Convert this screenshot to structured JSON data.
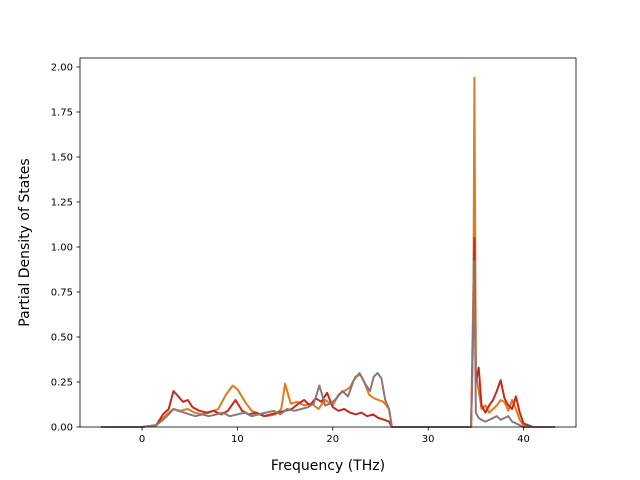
{
  "chart_data": {
    "type": "line",
    "title": "",
    "xlabel": "Frequency (THz)",
    "ylabel": "Partial Density of States",
    "xlim": [
      -6.5,
      45.5
    ],
    "ylim": [
      0.0,
      2.05
    ],
    "xticks": [
      0,
      10,
      20,
      30,
      40
    ],
    "xtick_labels": [
      "0",
      "10",
      "20",
      "30",
      "40"
    ],
    "yticks": [
      0.0,
      0.25,
      0.5,
      0.75,
      1.0,
      1.25,
      1.5,
      1.75,
      2.0
    ],
    "ytick_labels": [
      "0.00",
      "0.25",
      "0.50",
      "0.75",
      "1.00",
      "1.25",
      "1.50",
      "1.75",
      "2.00"
    ],
    "grid": false,
    "legend": "none",
    "series": [
      {
        "color": "#e07b20",
        "x": [
          -4.3,
          0.0,
          1.5,
          2.2,
          2.8,
          3.3,
          4.0,
          4.8,
          5.5,
          6.3,
          7.0,
          8.0,
          8.8,
          9.5,
          10.0,
          10.8,
          11.5,
          12.3,
          13.0,
          14.0,
          14.6,
          15.0,
          15.6,
          16.3,
          17.0,
          17.8,
          18.5,
          19.2,
          20.0,
          20.6,
          21.2,
          21.8,
          22.4,
          22.9,
          23.3,
          23.8,
          24.3,
          24.8,
          25.3,
          25.9,
          26.2,
          30.0,
          34.5,
          34.75,
          34.85,
          35.0,
          35.3,
          35.6,
          36.0,
          36.4,
          36.8,
          37.2,
          37.6,
          38.0,
          38.4,
          38.8,
          39.2,
          39.6,
          40.0,
          41.0,
          43.3
        ],
        "y": [
          0.0,
          0.0,
          0.01,
          0.05,
          0.08,
          0.1,
          0.09,
          0.1,
          0.08,
          0.07,
          0.08,
          0.1,
          0.18,
          0.23,
          0.21,
          0.14,
          0.09,
          0.07,
          0.06,
          0.07,
          0.1,
          0.24,
          0.13,
          0.14,
          0.12,
          0.13,
          0.1,
          0.15,
          0.12,
          0.18,
          0.2,
          0.22,
          0.28,
          0.29,
          0.25,
          0.18,
          0.16,
          0.15,
          0.14,
          0.1,
          0.0,
          0.0,
          0.0,
          0.8,
          1.94,
          0.3,
          0.2,
          0.1,
          0.12,
          0.08,
          0.1,
          0.12,
          0.15,
          0.14,
          0.09,
          0.15,
          0.1,
          0.04,
          0.01,
          0.0,
          0.0
        ]
      },
      {
        "color": "#c8281e",
        "x": [
          -4.3,
          0.0,
          1.5,
          2.2,
          2.8,
          3.3,
          3.8,
          4.3,
          4.8,
          5.3,
          6.0,
          6.8,
          7.5,
          8.3,
          9.0,
          9.8,
          10.5,
          11.2,
          12.0,
          12.8,
          13.5,
          14.2,
          15.0,
          15.7,
          16.4,
          17.0,
          17.6,
          18.2,
          18.8,
          19.4,
          20.0,
          20.6,
          21.2,
          21.8,
          22.4,
          23.0,
          23.6,
          24.2,
          24.8,
          25.4,
          25.9,
          26.2,
          30.0,
          34.5,
          34.75,
          34.85,
          35.0,
          35.3,
          35.6,
          36.0,
          36.4,
          36.8,
          37.2,
          37.6,
          38.0,
          38.4,
          38.8,
          39.2,
          39.6,
          40.0,
          41.0,
          43.3
        ],
        "y": [
          0.0,
          0.0,
          0.01,
          0.07,
          0.1,
          0.2,
          0.17,
          0.14,
          0.15,
          0.11,
          0.09,
          0.08,
          0.09,
          0.07,
          0.09,
          0.15,
          0.09,
          0.07,
          0.08,
          0.06,
          0.07,
          0.08,
          0.09,
          0.1,
          0.13,
          0.15,
          0.12,
          0.16,
          0.14,
          0.19,
          0.11,
          0.09,
          0.1,
          0.08,
          0.07,
          0.08,
          0.06,
          0.07,
          0.05,
          0.04,
          0.03,
          0.0,
          0.0,
          0.0,
          0.6,
          1.05,
          0.25,
          0.33,
          0.12,
          0.08,
          0.12,
          0.15,
          0.2,
          0.26,
          0.16,
          0.12,
          0.1,
          0.17,
          0.08,
          0.02,
          0.0,
          0.0
        ]
      },
      {
        "color": "#8a7878",
        "x": [
          -4.3,
          0.0,
          1.5,
          2.2,
          2.8,
          3.3,
          3.8,
          4.4,
          5.0,
          5.6,
          6.3,
          7.0,
          7.8,
          8.5,
          9.2,
          10.0,
          10.8,
          11.5,
          12.2,
          13.0,
          13.8,
          14.5,
          15.2,
          16.0,
          16.7,
          17.4,
          18.0,
          18.6,
          19.2,
          19.8,
          20.4,
          21.0,
          21.6,
          22.2,
          22.8,
          23.4,
          23.9,
          24.3,
          24.7,
          25.1,
          25.5,
          25.9,
          26.2,
          30.0,
          34.5,
          34.75,
          34.85,
          35.0,
          35.3,
          35.6,
          36.0,
          36.4,
          36.8,
          37.2,
          37.6,
          38.0,
          38.4,
          38.8,
          39.2,
          39.6,
          40.0,
          41.0,
          43.3
        ],
        "y": [
          0.0,
          0.0,
          0.01,
          0.04,
          0.07,
          0.1,
          0.09,
          0.08,
          0.07,
          0.06,
          0.07,
          0.06,
          0.07,
          0.08,
          0.06,
          0.07,
          0.08,
          0.06,
          0.07,
          0.08,
          0.09,
          0.07,
          0.1,
          0.09,
          0.1,
          0.11,
          0.13,
          0.23,
          0.12,
          0.13,
          0.16,
          0.2,
          0.17,
          0.26,
          0.3,
          0.24,
          0.2,
          0.28,
          0.3,
          0.27,
          0.15,
          0.1,
          0.0,
          0.0,
          0.0,
          0.6,
          0.92,
          0.08,
          0.05,
          0.04,
          0.03,
          0.04,
          0.05,
          0.06,
          0.04,
          0.05,
          0.06,
          0.03,
          0.02,
          0.01,
          0.0,
          0.0,
          0.0
        ]
      }
    ]
  }
}
